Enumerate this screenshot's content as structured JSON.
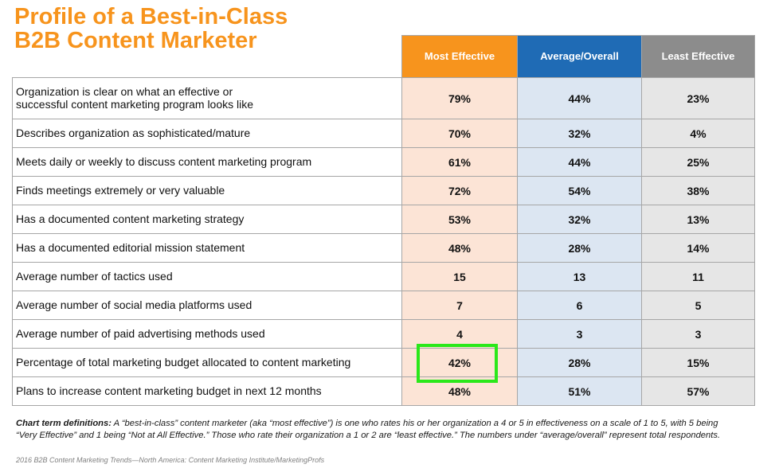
{
  "chart_data": {
    "type": "table",
    "title": {
      "line1": "Profile of a Best-in-Class",
      "line2": "B2B Content Marketer"
    },
    "columns": [
      "Most Effective",
      "Average/Overall",
      "Least Effective"
    ],
    "rows": [
      {
        "label": "Organization is clear on what an effective or\nsuccessful content marketing program looks like",
        "values": [
          "79%",
          "44%",
          "23%"
        ]
      },
      {
        "label": "Describes organization as sophisticated/mature",
        "values": [
          "70%",
          "32%",
          "4%"
        ]
      },
      {
        "label": "Meets daily or weekly to discuss content marketing program",
        "values": [
          "61%",
          "44%",
          "25%"
        ]
      },
      {
        "label": "Finds meetings extremely or very valuable",
        "values": [
          "72%",
          "54%",
          "38%"
        ]
      },
      {
        "label": "Has a documented content marketing strategy",
        "values": [
          "53%",
          "32%",
          "13%"
        ]
      },
      {
        "label": "Has a documented editorial mission statement",
        "values": [
          "48%",
          "28%",
          "14%"
        ]
      },
      {
        "label": "Average number of tactics used",
        "values": [
          "15",
          "13",
          "11"
        ]
      },
      {
        "label": "Average number of social media platforms used",
        "values": [
          "7",
          "6",
          "5"
        ]
      },
      {
        "label": "Average number of paid advertising methods used",
        "values": [
          "4",
          "3",
          "3"
        ]
      },
      {
        "label": "Percentage of total marketing budget allocated to content marketing",
        "values": [
          "42%",
          "28%",
          "15%"
        ]
      },
      {
        "label": "Plans to increase content marketing budget in next 12 months",
        "values": [
          "48%",
          "51%",
          "57%"
        ]
      }
    ],
    "highlighted_cell": {
      "row": 9,
      "column": 0
    }
  },
  "footnote": {
    "label": "Chart term definitions:",
    "line1": "A “best-in-class” content marketer (aka “most effective”) is one who rates his or her organization a 4 or 5 in effectiveness on a scale of 1 to 5, with 5 being",
    "line2": "“Very Effective” and 1 being “Not at All Effective.” Those who rate their organization a 1 or 2 are “least effective.” The numbers under “average/overall” represent total respondents."
  },
  "source": "2016 B2B Content Marketing Trends—North America: Content Marketing Institute/MarketingProfs",
  "colors": {
    "title": "#F7941D",
    "column_headers": [
      "#F7941D",
      "#1F6BB5",
      "#8C8C8C"
    ],
    "column_fills": [
      "#FCE4D6",
      "#DCE6F2",
      "#E6E6E6"
    ],
    "highlight": "#2BE81A"
  }
}
